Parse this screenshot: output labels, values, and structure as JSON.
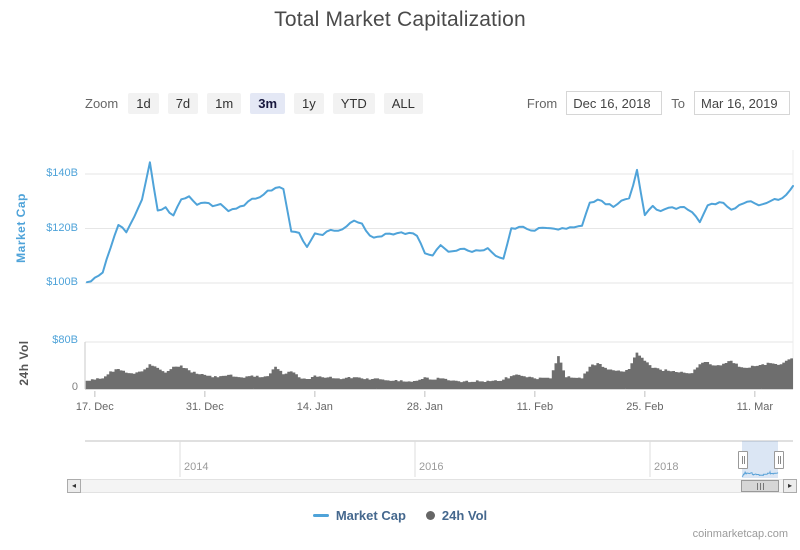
{
  "title": "Total Market Capitalization",
  "credit": "coinmarketcap.com",
  "toolbar": {
    "zoom_label": "Zoom",
    "buttons": [
      "1d",
      "7d",
      "1m",
      "3m",
      "1y",
      "YTD",
      "ALL"
    ],
    "selected": "3m",
    "from_label": "From",
    "from_value": "Dec 16, 2018",
    "to_label": "To",
    "to_value": "Mar 16, 2019"
  },
  "y_axis_titles": {
    "main": "Market Cap",
    "volume": "24h Vol"
  },
  "legend": [
    {
      "label": "Market Cap",
      "marker": "line"
    },
    {
      "label": "24h Vol",
      "marker": "circle"
    }
  ],
  "colors": {
    "line": "#4fa3d9",
    "volume": "#6e6e6e",
    "grid": "#e6e6e6",
    "axis_line": "#c9c9c9",
    "selected_button_bg": "#e4e8f5",
    "nav_selection": "rgba(125,165,215,0.28)"
  },
  "chart_data": {
    "type": "line+column",
    "x_range": [
      "Dec 16, 2018",
      "Mar 16, 2019"
    ],
    "x_tick_labels": [
      {
        "label": "17. Dec",
        "day": 1
      },
      {
        "label": "31. Dec",
        "day": 15
      },
      {
        "label": "14. Jan",
        "day": 29
      },
      {
        "label": "28. Jan",
        "day": 43
      },
      {
        "label": "11. Feb",
        "day": 57
      },
      {
        "label": "25. Feb",
        "day": 71
      },
      {
        "label": "11. Mar",
        "day": 85
      }
    ],
    "market_cap": {
      "name": "Market Cap",
      "type": "line",
      "unit": "USD billions",
      "y_ticks": [
        {
          "label": "$140B",
          "v": 140
        },
        {
          "label": "$120B",
          "v": 120
        },
        {
          "label": "$100B",
          "v": 100
        }
      ],
      "values": [
        100.3,
        102.0,
        103.8,
        112.9,
        121.3,
        118.6,
        124.2,
        130.6,
        144.3,
        126.6,
        127.8,
        124.8,
        130.7,
        131.8,
        128.7,
        129.5,
        128.2,
        129.0,
        126.4,
        127.3,
        128.4,
        130.9,
        131.5,
        133.9,
        134.9,
        134.5,
        118.9,
        118.4,
        113.2,
        118.2,
        117.6,
        119.5,
        119.2,
        120.7,
        122.9,
        121.8,
        117.4,
        117.0,
        118.1,
        117.8,
        118.6,
        118.4,
        117.3,
        110.9,
        110.1,
        113.9,
        111.5,
        111.8,
        112.6,
        111.4,
        111.9,
        112.8,
        110.0,
        108.9,
        120.1,
        120.6,
        119.8,
        119.2,
        120.3,
        120.1,
        119.6,
        119.9,
        120.4,
        121.0,
        129.5,
        130.6,
        128.9,
        127.9,
        130.2,
        131.1,
        141.5,
        124.9,
        128.3,
        126.4,
        127.6,
        127.2,
        127.9,
        126.0,
        122.3,
        128.5,
        128.9,
        129.4,
        126.9,
        128.6,
        129.8,
        129.2,
        128.9,
        130.1,
        130.5,
        132.4,
        135.6
      ]
    },
    "volume": {
      "name": "24h Vol",
      "type": "column",
      "unit": "USD billions",
      "y_ticks": [
        {
          "label": "$80B",
          "v": 80
        },
        {
          "label": "0",
          "v": 0
        }
      ],
      "values": [
        14,
        16,
        18,
        30,
        34,
        28,
        26,
        30,
        42,
        36,
        28,
        38,
        40,
        32,
        26,
        24,
        20,
        22,
        24,
        21,
        19,
        23,
        20,
        22,
        38,
        25,
        30,
        20,
        17,
        23,
        20,
        21,
        18,
        19,
        20,
        18,
        16,
        18,
        15,
        14,
        15,
        13,
        14,
        20,
        16,
        18,
        15,
        14,
        13,
        12,
        13,
        14,
        15,
        16,
        22,
        24,
        20,
        18,
        19,
        18,
        56,
        20,
        19,
        18,
        38,
        44,
        36,
        32,
        30,
        34,
        62,
        48,
        36,
        33,
        31,
        29,
        28,
        27,
        42,
        46,
        40,
        43,
        48,
        38,
        36,
        39,
        42,
        44,
        41,
        48,
        52
      ]
    },
    "navigator": {
      "year_labels": [
        "2014",
        "2016",
        "2018"
      ]
    }
  }
}
